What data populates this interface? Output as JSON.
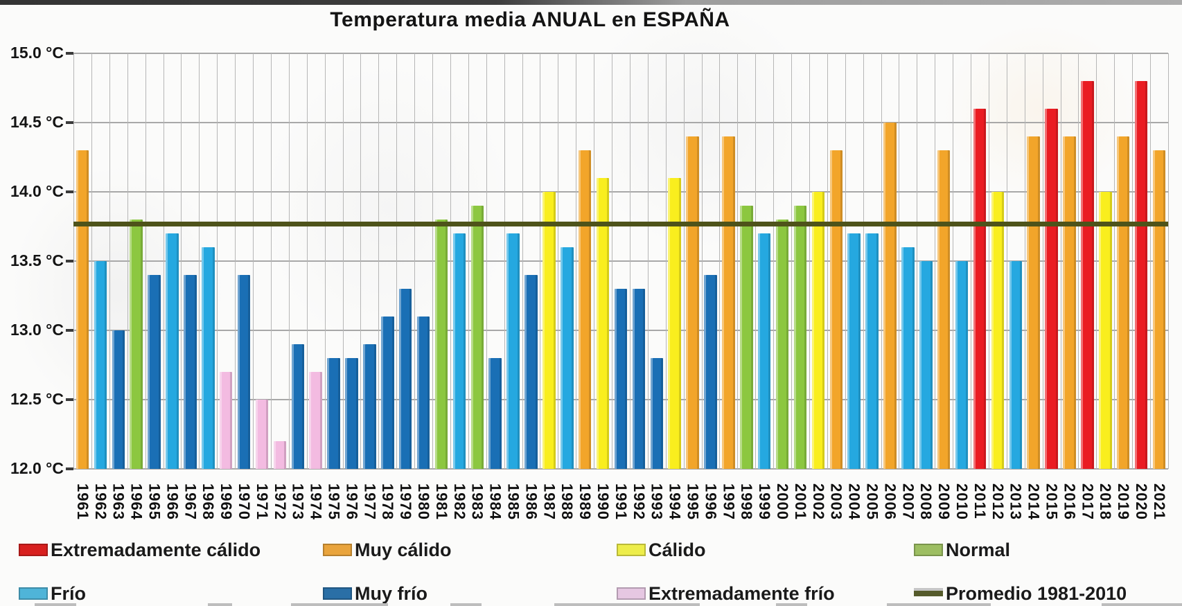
{
  "title": "Temperatura media ANUAL en ESPAÑA",
  "chart_data": {
    "type": "bar",
    "title": "Temperatura media ANUAL en ESPAÑA",
    "unit": "°C",
    "ylim": [
      12.0,
      15.0
    ],
    "ytick_step": 0.5,
    "ytick_labels": [
      "15.0 °C",
      "14.5 °C",
      "14.0 °C",
      "13.5 °C",
      "13.0 °C",
      "12.5 °C",
      "12.0 °C"
    ],
    "grid": true,
    "legend_position": "bottom",
    "categories": [
      "1961",
      "1962",
      "1963",
      "1964",
      "1965",
      "1966",
      "1967",
      "1968",
      "1969",
      "1970",
      "1971",
      "1972",
      "1973",
      "1974",
      "1975",
      "1976",
      "1977",
      "1978",
      "1979",
      "1980",
      "1981",
      "1982",
      "1983",
      "1984",
      "1985",
      "1986",
      "1987",
      "1988",
      "1989",
      "1990",
      "1991",
      "1992",
      "1993",
      "1994",
      "1995",
      "1996",
      "1997",
      "1998",
      "1999",
      "2000",
      "2001",
      "2002",
      "2003",
      "2004",
      "2005",
      "2006",
      "2007",
      "2008",
      "2009",
      "2010",
      "2011",
      "2012",
      "2013",
      "2014",
      "2015",
      "2016",
      "2017",
      "2018",
      "2019",
      "2020",
      "2021"
    ],
    "values": [
      14.3,
      13.5,
      13.0,
      13.8,
      13.4,
      13.7,
      13.4,
      13.6,
      12.7,
      13.4,
      12.5,
      12.2,
      12.9,
      12.7,
      12.8,
      12.8,
      12.9,
      13.1,
      13.3,
      13.1,
      13.8,
      13.7,
      13.9,
      12.8,
      13.7,
      13.4,
      14.0,
      13.6,
      14.3,
      14.1,
      13.3,
      13.3,
      12.8,
      14.1,
      14.4,
      13.4,
      14.4,
      13.9,
      13.7,
      13.8,
      13.9,
      14.0,
      14.3,
      13.7,
      13.7,
      14.5,
      13.6,
      13.5,
      14.3,
      13.5,
      14.6,
      14.0,
      13.5,
      14.4,
      14.6,
      14.4,
      14.8,
      14.0,
      14.4,
      14.8,
      14.3
    ],
    "point_categories": [
      "muy_calido",
      "frio",
      "muy_frio",
      "normal",
      "muy_frio",
      "frio",
      "muy_frio",
      "frio",
      "extremadamente_frio",
      "muy_frio",
      "extremadamente_frio",
      "extremadamente_frio",
      "muy_frio",
      "extremadamente_frio",
      "muy_frio",
      "muy_frio",
      "muy_frio",
      "muy_frio",
      "muy_frio",
      "muy_frio",
      "normal",
      "frio",
      "normal",
      "muy_frio",
      "frio",
      "muy_frio",
      "calido",
      "frio",
      "muy_calido",
      "calido",
      "muy_frio",
      "muy_frio",
      "muy_frio",
      "calido",
      "muy_calido",
      "muy_frio",
      "muy_calido",
      "normal",
      "frio",
      "normal",
      "normal",
      "calido",
      "muy_calido",
      "frio",
      "frio",
      "muy_calido",
      "frio",
      "frio",
      "muy_calido",
      "frio",
      "extremadamente_calido",
      "calido",
      "frio",
      "muy_calido",
      "extremadamente_calido",
      "muy_calido",
      "extremadamente_calido",
      "calido",
      "muy_calido",
      "extremadamente_calido",
      "muy_calido"
    ],
    "category_colors": {
      "extremadamente_calido": "#EA1C22",
      "muy_calido": "#F2A52A",
      "calido": "#F9EE1E",
      "normal": "#8CC740",
      "frio": "#25A8E0",
      "muy_frio": "#1A6FB5",
      "extremadamente_frio": "#F3BBE1"
    },
    "reference_line": {
      "label": "Promedio 1981-2010",
      "value": 13.77,
      "color": "#4E531A"
    },
    "legend": [
      {
        "key": "extremadamente_calido",
        "label": "Extremadamente cálido",
        "color": "#D8201F",
        "marker": "box"
      },
      {
        "key": "muy_calido",
        "label": "Muy cálido",
        "color": "#E9A43C",
        "marker": "box"
      },
      {
        "key": "calido",
        "label": "Cálido",
        "color": "#EDED4A",
        "marker": "box"
      },
      {
        "key": "normal",
        "label": "Normal",
        "color": "#9DBE62",
        "marker": "box"
      },
      {
        "key": "frio",
        "label": "Frío",
        "color": "#4FB4D8",
        "marker": "box"
      },
      {
        "key": "muy_frio",
        "label": "Muy frío",
        "color": "#2A6FA6",
        "marker": "box"
      },
      {
        "key": "extremadamente_frio",
        "label": "Extremadamente frío",
        "color": "#E6C7E2",
        "marker": "box"
      },
      {
        "key": "promedio",
        "label": "Promedio 1981-2010",
        "color": "#555B2B",
        "marker": "line"
      }
    ]
  }
}
